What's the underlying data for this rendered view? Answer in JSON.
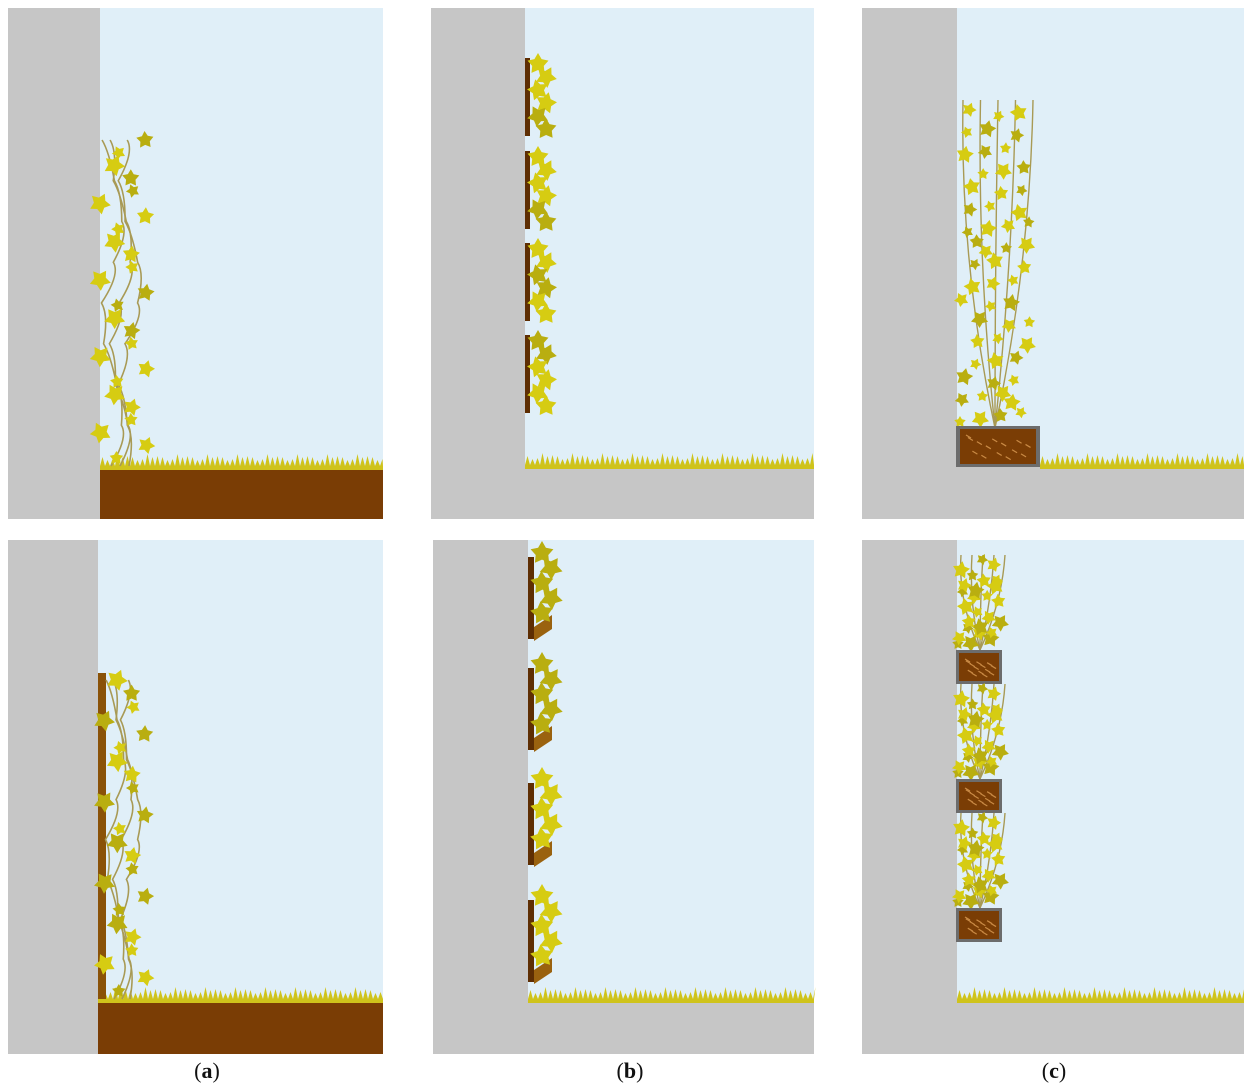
{
  "colors": {
    "sky": "#e0eff8",
    "wall": "#c6c6c6",
    "soil": "#7a3d05",
    "soil_dark": "#5e2e03",
    "grass": "#cfc31b",
    "leaf": "#d6cc12",
    "leaf_dark": "#b9ae10",
    "stem": "#a89a55",
    "box_rim": "#6c6c6c"
  },
  "captions": [
    {
      "open": "(",
      "letter": "a",
      "close": ")"
    },
    {
      "open": "(",
      "letter": "b",
      "close": ")"
    },
    {
      "open": "(",
      "letter": "c",
      "close": ")"
    }
  ]
}
